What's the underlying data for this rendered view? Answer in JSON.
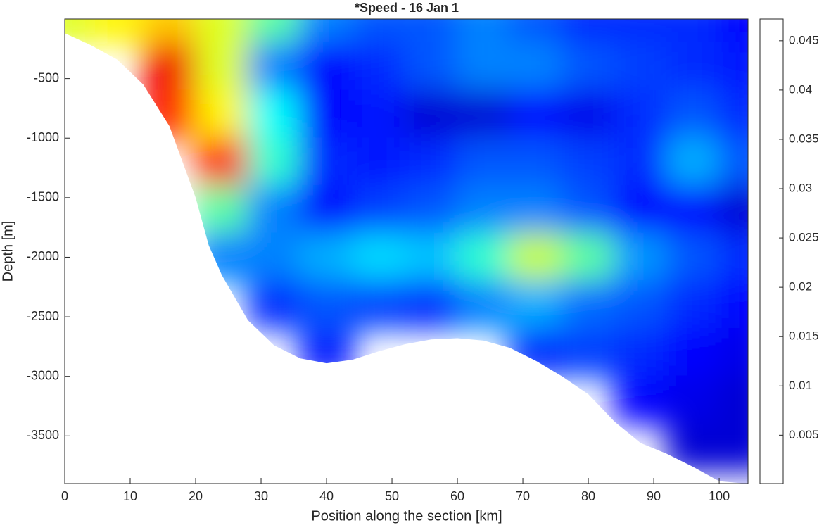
{
  "chart_data": {
    "type": "section",
    "title": "*Speed - 16 Jan 1",
    "xlabel": "Position along the section [km]",
    "ylabel": "Depth [m]",
    "colormap": "jet",
    "xlim": [
      0,
      104.4
    ],
    "xticks": [
      0,
      10,
      20,
      30,
      40,
      50,
      60,
      70,
      80,
      90,
      100
    ],
    "ylim": [
      -3900,
      0
    ],
    "yticks": [
      -3500,
      -3000,
      -2500,
      -2000,
      -1500,
      -1000,
      -500
    ],
    "clim": [
      0.0001,
      0.0472
    ],
    "cticks": [
      0.005,
      0.01,
      0.015,
      0.02,
      0.025,
      0.03,
      0.035,
      0.04,
      0.045
    ],
    "x": [
      0,
      8,
      16,
      24,
      32,
      40,
      48,
      56,
      64,
      72,
      80,
      88,
      96,
      104
    ],
    "depth": [
      0,
      -400,
      -800,
      -1200,
      -1600,
      -2000,
      -2400,
      -2800,
      -3200,
      -3600
    ],
    "z": [
      [
        0.028,
        0.03,
        0.032,
        0.028,
        0.022,
        0.012,
        0.01,
        0.01,
        0.012,
        0.01,
        0.008,
        0.008,
        0.008,
        0.006
      ],
      [
        null,
        null,
        0.042,
        0.028,
        0.012,
        0.006,
        0.008,
        0.01,
        0.012,
        0.012,
        0.01,
        0.009,
        0.008,
        0.007
      ],
      [
        null,
        null,
        0.04,
        0.03,
        0.018,
        0.006,
        0.007,
        0.004,
        0.004,
        0.006,
        0.005,
        0.008,
        0.01,
        0.008
      ],
      [
        null,
        null,
        null,
        0.04,
        0.02,
        0.008,
        0.007,
        0.008,
        0.01,
        0.01,
        0.009,
        0.008,
        0.014,
        0.01
      ],
      [
        null,
        null,
        null,
        0.022,
        0.012,
        0.006,
        0.009,
        0.01,
        0.012,
        0.012,
        0.01,
        0.006,
        0.006,
        0.004
      ],
      [
        null,
        null,
        null,
        0.012,
        0.012,
        0.014,
        0.016,
        0.015,
        0.02,
        0.027,
        0.022,
        0.013,
        0.01,
        0.008
      ],
      [
        null,
        null,
        null,
        null,
        0.008,
        0.01,
        0.009,
        0.008,
        0.012,
        0.014,
        0.011,
        0.01,
        0.008,
        0.006
      ],
      [
        null,
        null,
        null,
        null,
        null,
        0.007,
        null,
        null,
        null,
        0.008,
        0.009,
        0.008,
        0.006,
        0.005
      ],
      [
        null,
        null,
        null,
        null,
        null,
        null,
        null,
        null,
        null,
        null,
        null,
        0.006,
        0.005,
        0.004
      ],
      [
        null,
        null,
        null,
        null,
        null,
        null,
        null,
        null,
        null,
        null,
        null,
        null,
        0.004,
        0.004
      ]
    ],
    "bottom": {
      "x": [
        0,
        4,
        8,
        12,
        16,
        20,
        22,
        24,
        28,
        32,
        36,
        40,
        44,
        48,
        52,
        56,
        60,
        64,
        68,
        72,
        76,
        80,
        84,
        88,
        92,
        96,
        100,
        104
      ],
      "depth": [
        -120,
        -220,
        -340,
        -550,
        -900,
        -1500,
        -1900,
        -2150,
        -2530,
        -2740,
        -2850,
        -2890,
        -2860,
        -2790,
        -2730,
        -2690,
        -2680,
        -2700,
        -2760,
        -2870,
        -3000,
        -3150,
        -3380,
        -3560,
        -3650,
        -3760,
        -3880,
        -3900
      ]
    }
  }
}
